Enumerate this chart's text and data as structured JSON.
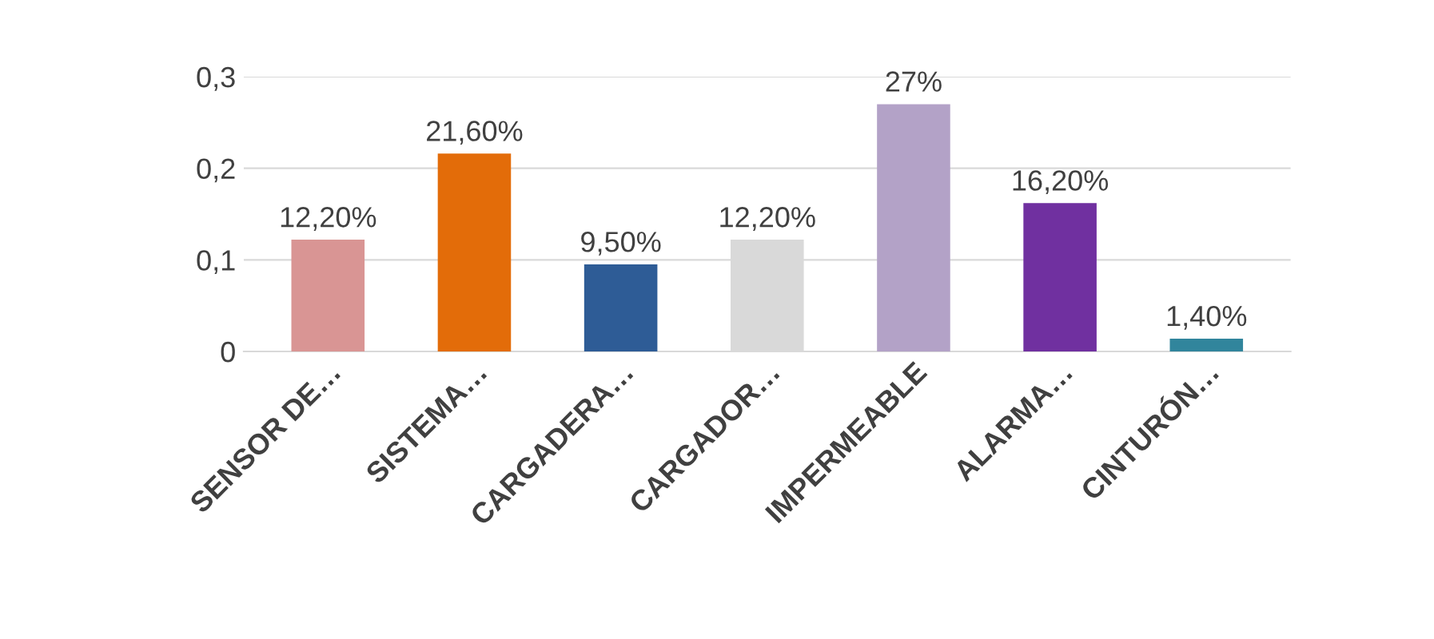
{
  "chart_data": {
    "type": "bar",
    "categories": [
      "SENSOR DE…",
      "SISTEMA…",
      "CARGADERA…",
      "CARGADOR…",
      "IMPERMEABLE",
      "ALARMA…",
      "CINTURÓN…"
    ],
    "values": [
      0.122,
      0.216,
      0.095,
      0.122,
      0.27,
      0.162,
      0.014
    ],
    "colors": [
      "#d99594",
      "#e36c09",
      "#2e5c96",
      "#d9d9d9",
      "#b3a2c7",
      "#7030a0",
      "#31859c"
    ],
    "value_labels": [
      "12,20%",
      "21,60%",
      "9,50%",
      "12,20%",
      "27%",
      "16,20%",
      "1,40%"
    ],
    "ylim": [
      0,
      0.3
    ],
    "yticks": [
      {
        "value": 0,
        "label": "0"
      },
      {
        "value": 0.1,
        "label": "0,1"
      },
      {
        "value": 0.2,
        "label": "0,2"
      },
      {
        "value": 0.3,
        "label": "0,3"
      }
    ],
    "grid": "y",
    "legend": false
  }
}
